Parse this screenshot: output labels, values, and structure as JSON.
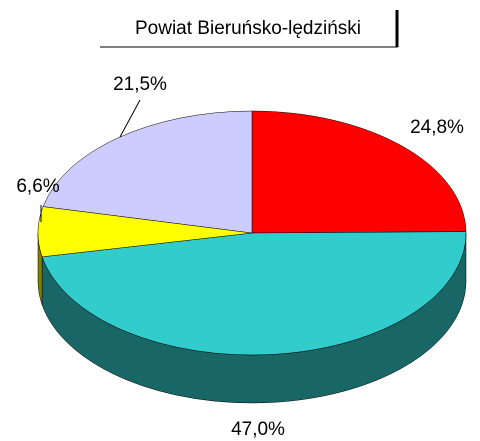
{
  "chart_data": {
    "type": "pie3d",
    "title": "Powiat Bieruńsko-lędziński",
    "categories": [
      null,
      null,
      null,
      null
    ],
    "values": [
      24.8,
      47.0,
      6.6,
      21.5
    ],
    "value_labels": [
      "24,8%",
      "47,0%",
      "6,6%",
      "21,5%"
    ],
    "colors": [
      "#ff0000",
      "#33cccc",
      "#ffff00",
      "#ccccff"
    ]
  }
}
